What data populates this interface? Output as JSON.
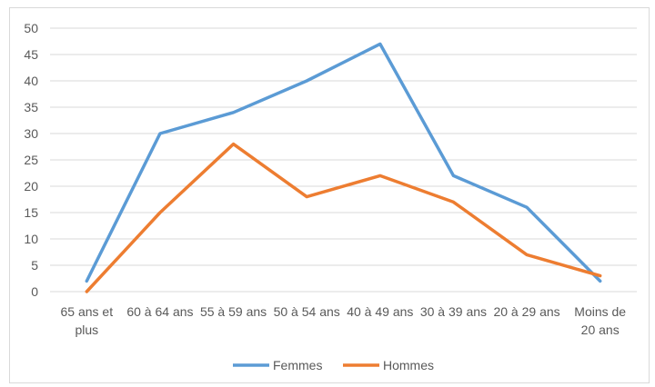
{
  "chart_data": {
    "type": "line",
    "title": "",
    "xlabel": "",
    "ylabel": "",
    "categories": [
      "65 ans et plus",
      "60 à 64 ans",
      "55 à 59 ans",
      "50 à 54 ans",
      "40 à 49 ans",
      "30 à 39 ans",
      "20 à 29 ans",
      "Moins de 20 ans"
    ],
    "category_lines": [
      [
        "65 ans et",
        "plus"
      ],
      [
        "60 à 64 ans"
      ],
      [
        "55 à 59 ans"
      ],
      [
        "50 à 54 ans"
      ],
      [
        "40 à 49 ans"
      ],
      [
        "30 à 39 ans"
      ],
      [
        "20 à 29 ans"
      ],
      [
        "Moins de",
        "20 ans"
      ]
    ],
    "ylim": [
      0,
      50
    ],
    "yticks": [
      0,
      5,
      10,
      15,
      20,
      25,
      30,
      35,
      40,
      45,
      50
    ],
    "grid": true,
    "legend_position": "bottom",
    "series": [
      {
        "name": "Femmes",
        "color": "#5B9BD5",
        "values": [
          2,
          30,
          34,
          40,
          47,
          22,
          16,
          2
        ]
      },
      {
        "name": "Hommes",
        "color": "#ED7D31",
        "values": [
          0,
          15,
          28,
          18,
          22,
          17,
          7,
          3
        ]
      }
    ]
  }
}
